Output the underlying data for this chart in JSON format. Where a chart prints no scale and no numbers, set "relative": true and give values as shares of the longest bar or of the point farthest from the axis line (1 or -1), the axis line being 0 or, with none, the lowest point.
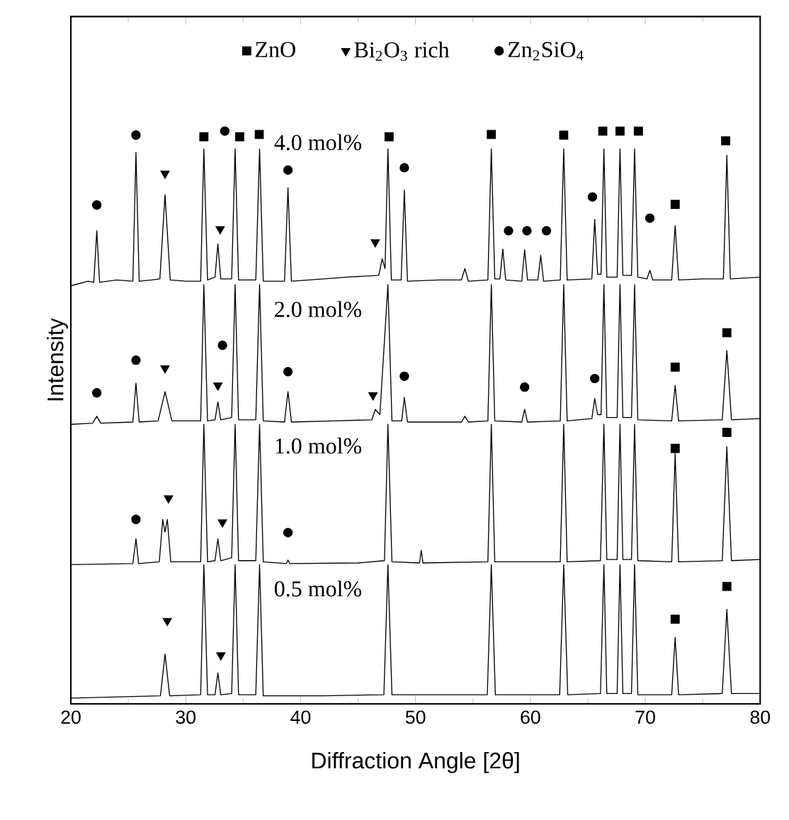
{
  "chart_data": {
    "type": "line",
    "relative": true,
    "xlabel": "Diffraction Angle  [2θ]",
    "ylabel": "Intensity",
    "xlim": [
      20,
      80
    ],
    "xticks": [
      20,
      30,
      40,
      50,
      60,
      70,
      80
    ],
    "legend": "top",
    "annotations": [
      "4.0 mol%",
      "2.0 mol%",
      "1.0 mol%",
      "0.5 mol%"
    ],
    "series": [
      {
        "color": "#000000",
        "x": [
          20,
          21.5,
          22.0,
          22.26,
          22.5,
          24,
          25.4,
          25.67,
          25.95,
          27.0,
          27.75,
          28.2,
          28.65,
          30,
          31.3,
          31.58,
          31.9,
          32.55,
          32.8,
          33.05,
          34.0,
          34.3,
          34.6,
          36.1,
          36.43,
          36.75,
          38.6,
          38.9,
          39.2,
          42,
          44,
          46.8,
          47.1,
          47.35,
          47.6,
          47.9,
          48.75,
          49.03,
          49.3,
          52,
          54.0,
          54.3,
          54.6,
          56.3,
          56.6,
          56.9,
          57.35,
          57.6,
          57.85,
          59.25,
          59.5,
          59.75,
          60.65,
          60.9,
          61.15,
          62.6,
          62.9,
          63.2,
          65.35,
          65.6,
          65.85,
          66.15,
          66.4,
          66.65,
          67.55,
          67.8,
          68.05,
          68.8,
          69.07,
          69.35,
          70.15,
          70.4,
          70.65,
          72.3,
          72.6,
          72.9,
          75,
          76.8,
          77.1,
          77.4,
          80
        ],
        "values": [
          0.73,
          0.738,
          0.736,
          0.826,
          0.736,
          0.74,
          0.738,
          0.963,
          0.738,
          0.74,
          0.742,
          0.889,
          0.74,
          0.738,
          0.738,
          0.969,
          0.74,
          0.745,
          0.803,
          0.742,
          0.742,
          0.969,
          0.74,
          0.74,
          0.969,
          0.738,
          0.738,
          0.901,
          0.738,
          0.742,
          0.745,
          0.748,
          0.777,
          0.76,
          0.969,
          0.74,
          0.74,
          0.897,
          0.738,
          0.74,
          0.74,
          0.76,
          0.738,
          0.74,
          0.969,
          0.742,
          0.742,
          0.794,
          0.74,
          0.738,
          0.793,
          0.74,
          0.74,
          0.783,
          0.738,
          0.74,
          0.969,
          0.74,
          0.742,
          0.846,
          0.75,
          0.75,
          0.969,
          0.745,
          0.745,
          0.969,
          0.748,
          0.748,
          0.969,
          0.745,
          0.742,
          0.757,
          0.74,
          0.74,
          0.835,
          0.74,
          0.742,
          0.742,
          0.958,
          0.742,
          0.745
        ]
      },
      {
        "color": "#000000",
        "x": [
          20,
          21.9,
          22.26,
          22.6,
          25.4,
          25.67,
          25.95,
          27.6,
          28.2,
          28.8,
          31.3,
          31.58,
          31.9,
          32.55,
          32.8,
          33.05,
          34.0,
          34.3,
          34.6,
          36.1,
          36.43,
          36.75,
          38.6,
          38.9,
          39.2,
          43,
          46.2,
          46.5,
          46.9,
          47.6,
          47.95,
          48.8,
          49.03,
          49.3,
          54.0,
          54.3,
          54.6,
          56.3,
          56.6,
          56.9,
          59.25,
          59.5,
          59.75,
          62.6,
          62.9,
          63.2,
          65.35,
          65.6,
          65.85,
          66.15,
          66.4,
          66.65,
          67.55,
          67.8,
          68.05,
          68.8,
          69.07,
          69.35,
          72.3,
          72.6,
          72.9,
          76.7,
          77.1,
          77.5,
          80
        ],
        "values": [
          0.488,
          0.49,
          0.502,
          0.49,
          0.492,
          0.56,
          0.492,
          0.494,
          0.545,
          0.494,
          0.494,
          0.732,
          0.494,
          0.496,
          0.527,
          0.496,
          0.5,
          0.732,
          0.496,
          0.496,
          0.732,
          0.494,
          0.492,
          0.545,
          0.492,
          0.494,
          0.496,
          0.514,
          0.505,
          0.732,
          0.494,
          0.494,
          0.535,
          0.492,
          0.492,
          0.502,
          0.492,
          0.494,
          0.732,
          0.494,
          0.492,
          0.514,
          0.492,
          0.494,
          0.732,
          0.494,
          0.498,
          0.533,
          0.505,
          0.505,
          0.732,
          0.5,
          0.5,
          0.732,
          0.5,
          0.5,
          0.732,
          0.496,
          0.494,
          0.556,
          0.494,
          0.496,
          0.617,
          0.496,
          0.498
        ]
      },
      {
        "color": "#000000",
        "x": [
          20,
          25.4,
          25.67,
          25.9,
          27.7,
          28.0,
          28.2,
          28.4,
          28.7,
          31.3,
          31.58,
          31.9,
          32.55,
          32.8,
          33.05,
          34.0,
          34.3,
          34.6,
          36.1,
          36.43,
          36.75,
          38.75,
          38.9,
          39.05,
          45,
          47.3,
          47.6,
          47.95,
          50.35,
          50.5,
          50.65,
          56.3,
          56.6,
          56.9,
          62.6,
          62.9,
          63.2,
          66.1,
          66.4,
          66.65,
          67.55,
          67.8,
          68.05,
          68.8,
          69.07,
          69.35,
          72.3,
          72.6,
          72.9,
          76.7,
          77.1,
          77.5,
          80
        ],
        "values": [
          0.243,
          0.245,
          0.288,
          0.245,
          0.248,
          0.322,
          0.3,
          0.322,
          0.248,
          0.248,
          0.488,
          0.248,
          0.25,
          0.288,
          0.25,
          0.255,
          0.488,
          0.25,
          0.25,
          0.488,
          0.248,
          0.245,
          0.251,
          0.245,
          0.246,
          0.25,
          0.488,
          0.248,
          0.246,
          0.268,
          0.246,
          0.248,
          0.488,
          0.248,
          0.248,
          0.488,
          0.248,
          0.25,
          0.488,
          0.252,
          0.252,
          0.488,
          0.252,
          0.252,
          0.488,
          0.25,
          0.248,
          0.437,
          0.248,
          0.25,
          0.449,
          0.25,
          0.252
        ]
      },
      {
        "color": "#000000",
        "x": [
          20,
          27.8,
          28.2,
          28.6,
          31.3,
          31.58,
          31.9,
          32.55,
          32.8,
          33.05,
          34.0,
          34.3,
          34.6,
          36.1,
          36.43,
          36.75,
          42,
          47.25,
          47.6,
          47.95,
          56.25,
          56.6,
          56.95,
          62.55,
          62.9,
          63.25,
          66.1,
          66.4,
          66.65,
          67.55,
          67.8,
          68.05,
          68.8,
          69.07,
          69.35,
          72.3,
          72.6,
          72.9,
          76.7,
          77.1,
          77.5,
          80
        ],
        "values": [
          0.01,
          0.014,
          0.087,
          0.014,
          0.016,
          0.243,
          0.016,
          0.016,
          0.054,
          0.016,
          0.018,
          0.243,
          0.016,
          0.016,
          0.243,
          0.014,
          0.014,
          0.016,
          0.243,
          0.016,
          0.016,
          0.243,
          0.016,
          0.016,
          0.243,
          0.016,
          0.018,
          0.243,
          0.018,
          0.018,
          0.243,
          0.018,
          0.018,
          0.243,
          0.016,
          0.016,
          0.116,
          0.016,
          0.018,
          0.165,
          0.018,
          0.018
        ]
      },
      {
        "type": "scatter",
        "name": "ZnO",
        "color": "#000000",
        "marker": "square",
        "x": [
          31.58,
          34.7,
          36.4,
          47.7,
          56.6,
          62.9,
          66.3,
          67.8,
          69.4,
          72.6,
          77.0,
          72.6,
          77.1,
          72.6,
          77.1,
          72.6,
          77.1
        ],
        "values": [
          0.99,
          0.99,
          0.994,
          0.99,
          0.994,
          0.993,
          1.0,
          1.0,
          1.0,
          0.872,
          0.983,
          0.588,
          0.648,
          0.446,
          0.474,
          0.148,
          0.205
        ]
      },
      {
        "type": "scatter",
        "name": "Bi$_{2}$O$_{3}$ rich",
        "color": "#000000",
        "marker": "triangle",
        "x": [
          28.2,
          33.0,
          46.5,
          28.2,
          32.8,
          46.3,
          28.5,
          33.2,
          28.4,
          33.06
        ],
        "values": [
          0.926,
          0.829,
          0.806,
          0.586,
          0.556,
          0.539,
          0.359,
          0.317,
          0.145,
          0.085
        ]
      },
      {
        "type": "scatter",
        "name": "Zn$_{2}$SiO$_{4}$",
        "color": "#000000",
        "marker": "circle",
        "x": [
          22.26,
          25.67,
          33.4,
          38.9,
          49.03,
          58.1,
          59.7,
          61.4,
          65.4,
          70.4,
          22.26,
          25.67,
          33.2,
          38.9,
          49.03,
          59.5,
          65.6,
          25.67,
          38.9
        ],
        "values": [
          0.871,
          0.993,
          1.0,
          0.932,
          0.936,
          0.826,
          0.826,
          0.826,
          0.885,
          0.848,
          0.543,
          0.6,
          0.626,
          0.58,
          0.572,
          0.553,
          0.568,
          0.322,
          0.299
        ]
      }
    ]
  }
}
